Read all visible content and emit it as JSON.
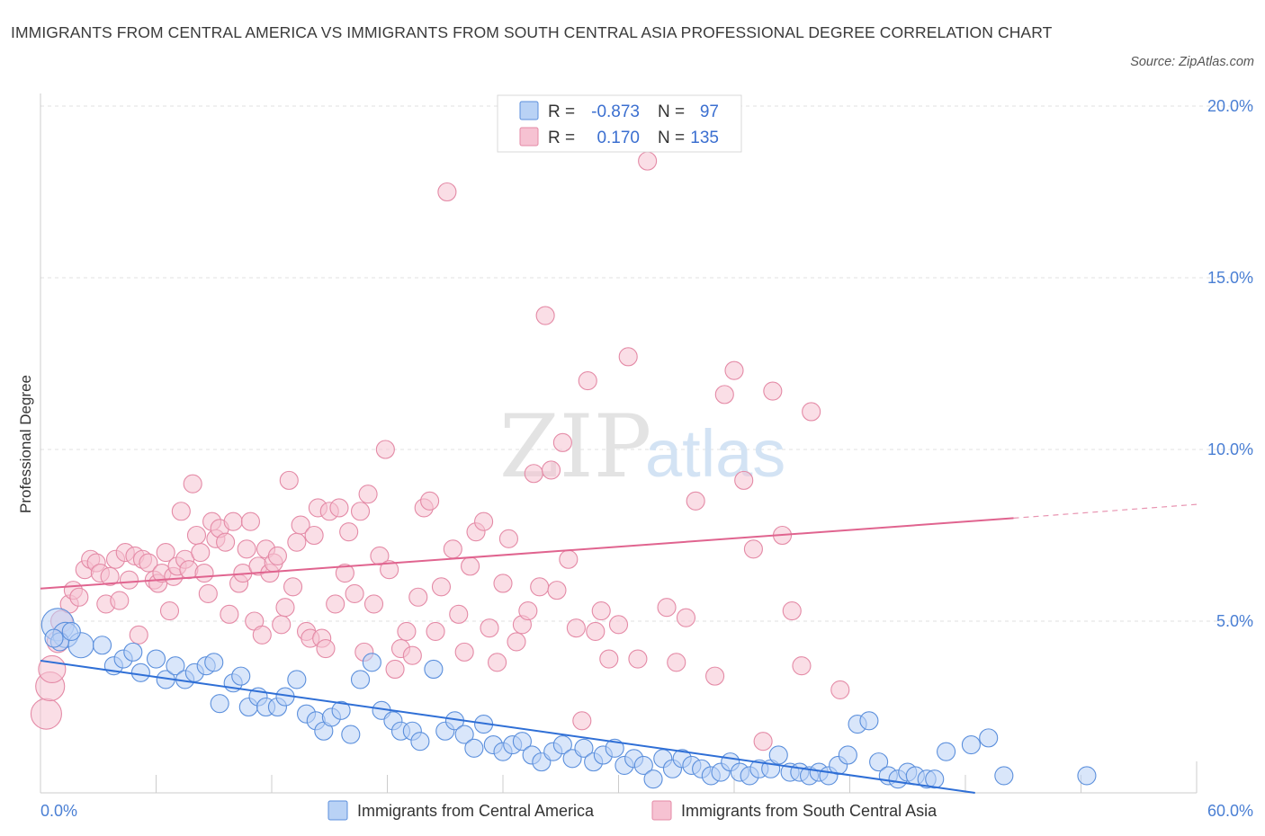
{
  "title": "IMMIGRANTS FROM CENTRAL AMERICA VS IMMIGRANTS FROM SOUTH CENTRAL ASIA PROFESSIONAL DEGREE CORRELATION CHART",
  "source": "Source: ZipAtlas.com",
  "watermark": {
    "zip": "ZIP",
    "atlas": "atlas"
  },
  "chart_data": {
    "type": "scatter",
    "title": "IMMIGRANTS FROM CENTRAL AMERICA VS IMMIGRANTS FROM SOUTH CENTRAL ASIA PROFESSIONAL DEGREE CORRELATION CHART",
    "xlabel": "",
    "ylabel": "Professional Degree",
    "xlim": [
      0,
      60
    ],
    "ylim": [
      0,
      20
    ],
    "x_tick_labels": [
      "0.0%",
      "60.0%"
    ],
    "y_ticks": [
      5,
      10,
      15,
      20
    ],
    "y_tick_labels": [
      "5.0%",
      "10.0%",
      "15.0%",
      "20.0%"
    ],
    "grid": true,
    "legend_position": "top-center",
    "series": [
      {
        "name": "Immigrants from Central America",
        "color": "#6fa0e6",
        "stroke": "#5b8fdc",
        "fill": "#b9d2f5",
        "R": "-0.873",
        "N": "97",
        "trend": {
          "x0": 0,
          "y0": 3.85,
          "x1": 48.5,
          "y1": 0.0
        },
        "points": [
          [
            0.9,
            4.9
          ],
          [
            1.3,
            4.6
          ],
          [
            2.1,
            4.3
          ],
          [
            3.2,
            4.3
          ],
          [
            1.0,
            4.4
          ],
          [
            3.8,
            3.7
          ],
          [
            4.3,
            3.9
          ],
          [
            4.8,
            4.1
          ],
          [
            5.2,
            3.5
          ],
          [
            6.0,
            3.9
          ],
          [
            6.5,
            3.3
          ],
          [
            7.0,
            3.7
          ],
          [
            7.5,
            3.3
          ],
          [
            8.0,
            3.5
          ],
          [
            8.6,
            3.7
          ],
          [
            9.0,
            3.8
          ],
          [
            9.3,
            2.6
          ],
          [
            10.0,
            3.2
          ],
          [
            10.4,
            3.4
          ],
          [
            10.8,
            2.5
          ],
          [
            11.3,
            2.8
          ],
          [
            11.7,
            2.5
          ],
          [
            12.3,
            2.5
          ],
          [
            12.7,
            2.8
          ],
          [
            13.3,
            3.3
          ],
          [
            13.8,
            2.3
          ],
          [
            14.3,
            2.1
          ],
          [
            14.7,
            1.8
          ],
          [
            15.1,
            2.2
          ],
          [
            15.6,
            2.4
          ],
          [
            16.1,
            1.7
          ],
          [
            16.6,
            3.3
          ],
          [
            17.2,
            3.8
          ],
          [
            17.7,
            2.4
          ],
          [
            18.3,
            2.1
          ],
          [
            18.7,
            1.8
          ],
          [
            19.3,
            1.8
          ],
          [
            19.7,
            1.5
          ],
          [
            20.4,
            3.6
          ],
          [
            21.0,
            1.8
          ],
          [
            21.5,
            2.1
          ],
          [
            22.0,
            1.7
          ],
          [
            22.5,
            1.3
          ],
          [
            23.0,
            2.0
          ],
          [
            23.5,
            1.4
          ],
          [
            24.0,
            1.2
          ],
          [
            24.5,
            1.4
          ],
          [
            25.0,
            1.5
          ],
          [
            25.5,
            1.1
          ],
          [
            26.0,
            0.9
          ],
          [
            26.6,
            1.2
          ],
          [
            27.1,
            1.4
          ],
          [
            27.6,
            1.0
          ],
          [
            28.2,
            1.3
          ],
          [
            28.7,
            0.9
          ],
          [
            29.2,
            1.1
          ],
          [
            29.8,
            1.3
          ],
          [
            30.3,
            0.8
          ],
          [
            30.8,
            1.0
          ],
          [
            31.3,
            0.8
          ],
          [
            31.8,
            0.4
          ],
          [
            32.3,
            1.0
          ],
          [
            32.8,
            0.7
          ],
          [
            33.3,
            1.0
          ],
          [
            33.8,
            0.8
          ],
          [
            34.3,
            0.7
          ],
          [
            34.8,
            0.5
          ],
          [
            35.3,
            0.6
          ],
          [
            35.8,
            0.9
          ],
          [
            36.3,
            0.6
          ],
          [
            36.8,
            0.5
          ],
          [
            37.3,
            0.7
          ],
          [
            37.9,
            0.7
          ],
          [
            38.3,
            1.1
          ],
          [
            38.9,
            0.6
          ],
          [
            39.4,
            0.6
          ],
          [
            39.9,
            0.5
          ],
          [
            40.4,
            0.6
          ],
          [
            40.9,
            0.5
          ],
          [
            41.4,
            0.8
          ],
          [
            41.9,
            1.1
          ],
          [
            42.4,
            2.0
          ],
          [
            43.0,
            2.1
          ],
          [
            43.5,
            0.9
          ],
          [
            44.0,
            0.5
          ],
          [
            44.5,
            0.4
          ],
          [
            45.0,
            0.6
          ],
          [
            45.4,
            0.5
          ],
          [
            46.0,
            0.4
          ],
          [
            46.4,
            0.4
          ],
          [
            47.0,
            1.2
          ],
          [
            48.3,
            1.4
          ],
          [
            49.2,
            1.6
          ],
          [
            50.0,
            0.5
          ],
          [
            54.3,
            0.5
          ],
          [
            0.7,
            4.5
          ],
          [
            1.6,
            4.7
          ]
        ],
        "sizes_large_first": 3
      },
      {
        "name": "Immigrants from South Central Asia",
        "color": "#e8799b",
        "stroke": "#e48aa6",
        "fill": "#f6c2d2",
        "R": "0.170",
        "N": "135",
        "trend": {
          "x0": 0,
          "y0": 5.95,
          "x1": 50.5,
          "y1": 8.0,
          "x2": 60,
          "y2": 8.4
        },
        "points": [
          [
            0.3,
            2.3
          ],
          [
            0.5,
            3.1
          ],
          [
            0.6,
            3.6
          ],
          [
            0.9,
            4.4
          ],
          [
            1.1,
            5.0
          ],
          [
            1.5,
            5.5
          ],
          [
            1.7,
            5.9
          ],
          [
            2.0,
            5.7
          ],
          [
            2.3,
            6.5
          ],
          [
            2.6,
            6.8
          ],
          [
            2.9,
            6.7
          ],
          [
            3.1,
            6.4
          ],
          [
            3.4,
            5.5
          ],
          [
            3.6,
            6.3
          ],
          [
            3.9,
            6.8
          ],
          [
            4.1,
            5.6
          ],
          [
            4.4,
            7.0
          ],
          [
            4.6,
            6.2
          ],
          [
            4.9,
            6.9
          ],
          [
            5.1,
            4.6
          ],
          [
            5.3,
            6.8
          ],
          [
            5.6,
            6.7
          ],
          [
            5.9,
            6.2
          ],
          [
            6.1,
            6.1
          ],
          [
            6.3,
            6.4
          ],
          [
            6.5,
            7.0
          ],
          [
            6.7,
            5.3
          ],
          [
            6.9,
            6.3
          ],
          [
            7.1,
            6.6
          ],
          [
            7.3,
            8.2
          ],
          [
            7.5,
            6.8
          ],
          [
            7.7,
            6.5
          ],
          [
            7.9,
            9.0
          ],
          [
            8.1,
            7.5
          ],
          [
            8.3,
            7.0
          ],
          [
            8.5,
            6.4
          ],
          [
            8.7,
            5.8
          ],
          [
            8.9,
            7.9
          ],
          [
            9.1,
            7.4
          ],
          [
            9.3,
            7.7
          ],
          [
            9.6,
            7.3
          ],
          [
            9.8,
            5.2
          ],
          [
            10.0,
            7.9
          ],
          [
            10.3,
            6.1
          ],
          [
            10.5,
            6.4
          ],
          [
            10.7,
            7.1
          ],
          [
            10.9,
            7.9
          ],
          [
            11.1,
            5.0
          ],
          [
            11.3,
            6.6
          ],
          [
            11.5,
            4.6
          ],
          [
            11.7,
            7.1
          ],
          [
            11.9,
            6.4
          ],
          [
            12.1,
            6.7
          ],
          [
            12.3,
            6.9
          ],
          [
            12.5,
            4.9
          ],
          [
            12.7,
            5.4
          ],
          [
            12.9,
            9.1
          ],
          [
            13.1,
            6.0
          ],
          [
            13.3,
            7.3
          ],
          [
            13.5,
            7.8
          ],
          [
            13.8,
            4.7
          ],
          [
            14.0,
            4.5
          ],
          [
            14.2,
            7.5
          ],
          [
            14.4,
            8.3
          ],
          [
            14.6,
            4.5
          ],
          [
            14.8,
            4.2
          ],
          [
            15.0,
            8.2
          ],
          [
            15.3,
            5.5
          ],
          [
            15.5,
            8.3
          ],
          [
            15.8,
            6.4
          ],
          [
            16.0,
            7.6
          ],
          [
            16.3,
            5.8
          ],
          [
            16.6,
            8.2
          ],
          [
            16.8,
            4.1
          ],
          [
            17.0,
            8.7
          ],
          [
            17.3,
            5.5
          ],
          [
            17.6,
            6.9
          ],
          [
            17.9,
            10.0
          ],
          [
            18.1,
            6.5
          ],
          [
            18.4,
            3.6
          ],
          [
            18.7,
            4.2
          ],
          [
            19.0,
            4.7
          ],
          [
            19.3,
            4.0
          ],
          [
            19.6,
            5.7
          ],
          [
            19.9,
            8.3
          ],
          [
            20.2,
            8.5
          ],
          [
            20.5,
            4.7
          ],
          [
            20.8,
            6.0
          ],
          [
            21.1,
            17.5
          ],
          [
            21.4,
            7.1
          ],
          [
            21.7,
            5.2
          ],
          [
            22.0,
            4.1
          ],
          [
            22.3,
            6.6
          ],
          [
            22.6,
            7.6
          ],
          [
            23.0,
            7.9
          ],
          [
            23.3,
            4.8
          ],
          [
            23.7,
            3.8
          ],
          [
            24.0,
            6.1
          ],
          [
            24.3,
            7.4
          ],
          [
            24.7,
            4.4
          ],
          [
            25.0,
            4.9
          ],
          [
            25.3,
            5.3
          ],
          [
            25.6,
            9.3
          ],
          [
            25.9,
            6.0
          ],
          [
            26.2,
            13.9
          ],
          [
            26.5,
            9.4
          ],
          [
            26.8,
            5.9
          ],
          [
            27.1,
            10.2
          ],
          [
            27.4,
            6.8
          ],
          [
            27.8,
            4.8
          ],
          [
            28.1,
            2.1
          ],
          [
            28.4,
            12.0
          ],
          [
            28.8,
            4.7
          ],
          [
            29.1,
            5.3
          ],
          [
            29.5,
            3.9
          ],
          [
            30.0,
            4.9
          ],
          [
            30.5,
            12.7
          ],
          [
            31.0,
            3.9
          ],
          [
            31.5,
            18.4
          ],
          [
            32.5,
            5.4
          ],
          [
            33.0,
            3.8
          ],
          [
            33.5,
            5.1
          ],
          [
            34.0,
            8.5
          ],
          [
            35.0,
            3.4
          ],
          [
            35.5,
            11.6
          ],
          [
            36.0,
            12.3
          ],
          [
            36.5,
            9.1
          ],
          [
            37.0,
            7.1
          ],
          [
            37.5,
            1.5
          ],
          [
            38.0,
            11.7
          ],
          [
            38.5,
            7.5
          ],
          [
            39.0,
            5.3
          ],
          [
            39.5,
            3.7
          ],
          [
            40.0,
            11.1
          ],
          [
            41.5,
            3.0
          ]
        ]
      }
    ]
  },
  "legend": {
    "r_label": "R =",
    "n_label": "N =",
    "rows": [
      {
        "r": "-0.873",
        "n": "97"
      },
      {
        "r": "0.170",
        "n": "135"
      }
    ]
  },
  "bottom_legend": [
    "Immigrants from Central America",
    "Immigrants from South Central Asia"
  ]
}
